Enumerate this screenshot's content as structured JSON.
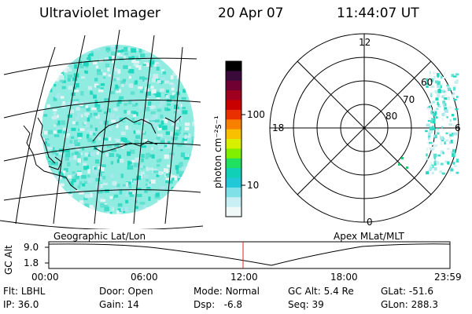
{
  "header": {
    "instrument": "Ultraviolet Imager",
    "date": "20 Apr 07",
    "time": "11:44:07 UT"
  },
  "geo_panel": {
    "caption": "Geographic Lat/Lon"
  },
  "colorbar": {
    "unit_label": "photon cm⁻²s⁻¹",
    "ticks": [
      "100",
      "10"
    ],
    "colors": [
      "#000000",
      "#3a0a3a",
      "#700032",
      "#a00020",
      "#c80000",
      "#e83000",
      "#f88000",
      "#f8c000",
      "#d8f000",
      "#80f000",
      "#20e060",
      "#10d0b8",
      "#20c8d8",
      "#80e0e8",
      "#c8f0f4",
      "#f0f8f8"
    ]
  },
  "polar_panel": {
    "caption": "Apex MLat/MLT",
    "mlt_labels": {
      "top": "12",
      "right": "6",
      "bottom": "0",
      "left": "18"
    },
    "lat_labels": [
      "60",
      "70",
      "80"
    ]
  },
  "altitude_plot": {
    "ylabel": "GC Alt",
    "yticks": [
      "9.0",
      "1.8"
    ],
    "xticks": [
      "00:00",
      "06:00",
      "12:00",
      "18:00",
      "23:59"
    ]
  },
  "status": {
    "row1": [
      {
        "label": "Flt:",
        "value": "LBHL"
      },
      {
        "label": "Door:",
        "value": "Open"
      },
      {
        "label": "Mode:",
        "value": "Normal"
      },
      {
        "label": "GC Alt:",
        "value": "5.4 Re"
      },
      {
        "label": "GLat:",
        "value": "-51.6"
      }
    ],
    "row2": [
      {
        "label": "IP:",
        "value": "36.0"
      },
      {
        "label": "Gain:",
        "value": "14"
      },
      {
        "label": "Dsp:",
        "value": "-6.8"
      },
      {
        "label": "Seq:",
        "value": "39"
      },
      {
        "label": "GLon:",
        "value": "288.3"
      }
    ]
  }
}
